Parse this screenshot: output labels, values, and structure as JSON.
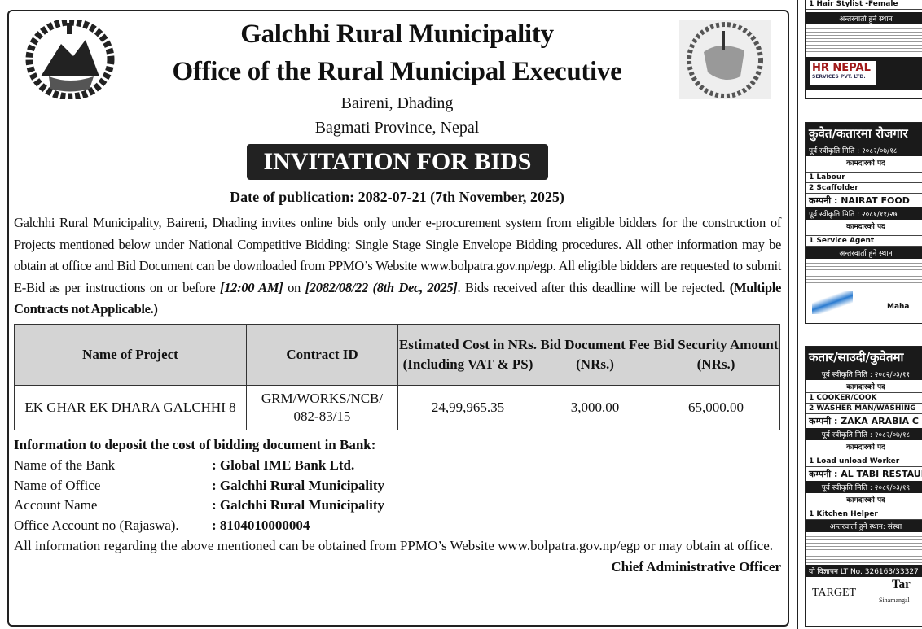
{
  "header": {
    "title1": "Galchhi Rural Municipality",
    "title2": "Office of the Rural Municipal Executive",
    "address1": "Baireni, Dhading",
    "address2": "Bagmati Province, Nepal",
    "banner": "INVITATION FOR BIDS",
    "date": "Date of publication: 2082-07-21  (7th November, 2025)",
    "logo_left": "Government of Nepal emblem",
    "logo_right": "Galchhi Rural Municipality"
  },
  "body": {
    "p1": "Galchhi Rural Municipality, Baireni, Dhading invites online bids only under e-procurement system from eligible bidders for the construction of Projects mentioned below under National Competitive Bidding: Single Stage Single Envelope Bidding procedures. All other information  may be obtain at office and Bid Document can be downloaded from PPMO’s Website www.bolpatra.gov.np/egp. All eligible bidders are requested to submit E-Bid as per instructions on or before ",
    "time": "[12:00 AM]",
    "on": " on ",
    "deadline": "[2082/08/22 (8th Dec, 2025]",
    "after": ". Bids received after this deadline will be rejected. ",
    "note": "(Multiple Contracts not Applicable.)"
  },
  "table": {
    "headers": [
      "Name of Project",
      "Contract ID",
      "Estimated Cost in NRs. (Including VAT & PS)",
      "Bid Document Fee (NRs.)",
      "Bid Security Amount (NRs.)"
    ],
    "rows": [
      [
        "EK GHAR EK DHARA GALCHHI 8",
        "GRM/WORKS/NCB/ 082-83/15",
        "24,99,965.35",
        "3,000.00",
        "65,000.00"
      ]
    ]
  },
  "bank": {
    "heading": "Information to deposit the cost of bidding document in Bank:",
    "rows": [
      {
        "label": "Name of the Bank",
        "value": ": Global IME Bank Ltd."
      },
      {
        "label": "Name of Office",
        "value": ": Galchhi Rural Municipality"
      },
      {
        "label": "Account Name",
        "value": ": Galchhi Rural Municipality"
      },
      {
        "label": "Office Account no (Rajaswa).",
        "value": ": 8104010000004"
      }
    ],
    "footer": "All information regarding the above mentioned can be obtained from PPMO’s Website www.bolpatra.gov.np/egp or may obtain at office.",
    "signature": "Chief Administrative Officer"
  },
  "ads": {
    "a1": {
      "row": "1  Hair Stylist -Female",
      "bar": "अन्तरवार्ता हुने स्थान",
      "brand": "HR NEPAL",
      "brand_sub": "SERVICES PVT. LTD."
    },
    "a2": {
      "title": "कुवेत/कतारमा रोजगार",
      "date1": "पूर्व स्वीकृति मिति : २०८२/०७/१८",
      "col": "कामदारको पद",
      "r1": "1  Labour",
      "r2": "2  Scaffolder",
      "company": "कम्पनी :  NAIRAT FOOD",
      "date2": "पूर्व स्वीकृति मिति : २०८१/११/२७",
      "r3": "1  Service Agent",
      "bar": "अन्तरवार्ता हुने स्थान",
      "brand": "Maha"
    },
    "a3": {
      "title": "कतार/साउदी/कुवेतमा",
      "date1": "पूर्व स्वीकृति मिति : २०८२/०३/११",
      "col": "कामदारको पद",
      "r1": "1  COOKER/COOK",
      "r2": "2  WASHER MAN/WASHING",
      "company1": "कम्पनी :  ZAKA ARABIA C",
      "date2": "पूर्व स्वीकृति मिति : २०८२/०७/१८",
      "r3": "1  Load unload Worker",
      "company2": "कम्पनी :  AL TABI RESTAUR",
      "date3": "पूर्व स्वीकृति मिति : २०८१/०३/१९",
      "r4": "1  Kitchen Helper",
      "bar": "अन्तरवार्ता हुने स्थान: संस्था",
      "lt": "यो विज्ञापन LT No. 326163/33327",
      "brand": "TARGET",
      "brand2": "Tar",
      "place": "Sinamangal"
    }
  }
}
